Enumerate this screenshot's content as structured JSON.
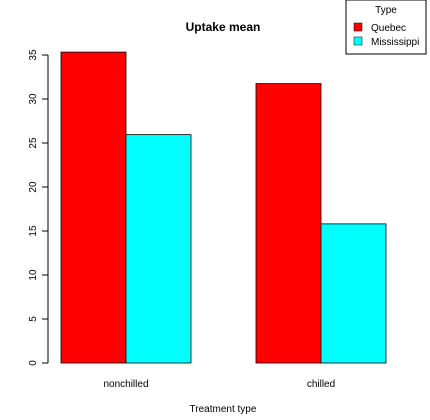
{
  "chart_data": {
    "type": "bar",
    "title": "Uptake mean",
    "xlabel": "Treatment type",
    "ylabel": "",
    "categories": [
      "nonchilled",
      "chilled"
    ],
    "series": [
      {
        "name": "Quebec",
        "values": [
          35.33,
          31.75
        ],
        "color": "#ff0000"
      },
      {
        "name": "Mississippi",
        "values": [
          25.95,
          15.81
        ],
        "color": "#00ffff"
      }
    ],
    "ylim": [
      0,
      35
    ],
    "yticks": [
      0,
      5,
      10,
      15,
      20,
      25,
      30,
      35
    ],
    "grid": false,
    "legend": {
      "title": "Type",
      "placement": "top-right"
    }
  }
}
